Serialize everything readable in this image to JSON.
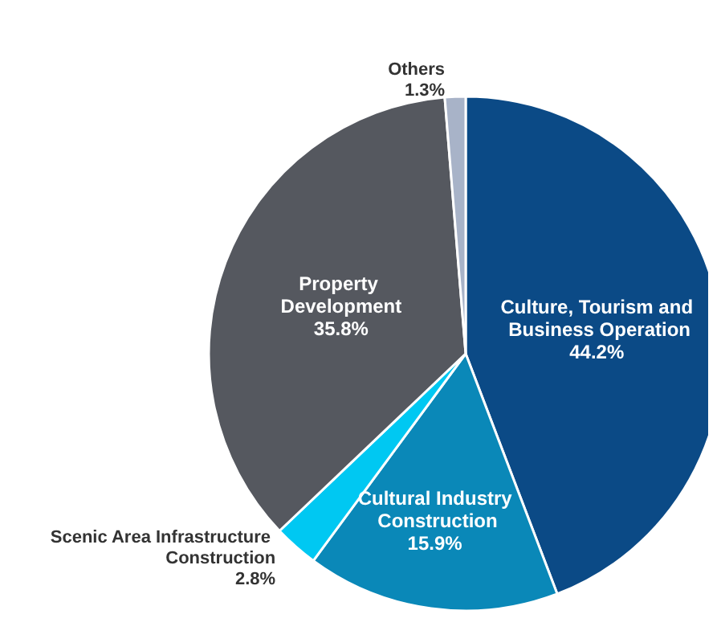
{
  "chart_data": {
    "type": "pie",
    "categories": [
      "Culture, Tourism and Business Operation",
      "Cultural Industry Construction",
      "Scenic Area Infrastructure Construction",
      "Property Development",
      "Others"
    ],
    "values": [
      44.2,
      15.9,
      2.8,
      35.8,
      1.3
    ],
    "colors": [
      "#0b4a86",
      "#0a88b8",
      "#00c8f2",
      "#55585f",
      "#a8b3c8"
    ],
    "value_labels": [
      "44.2%",
      "15.9%",
      "2.8%",
      "35.8%",
      "1.3%"
    ],
    "legend": false
  }
}
